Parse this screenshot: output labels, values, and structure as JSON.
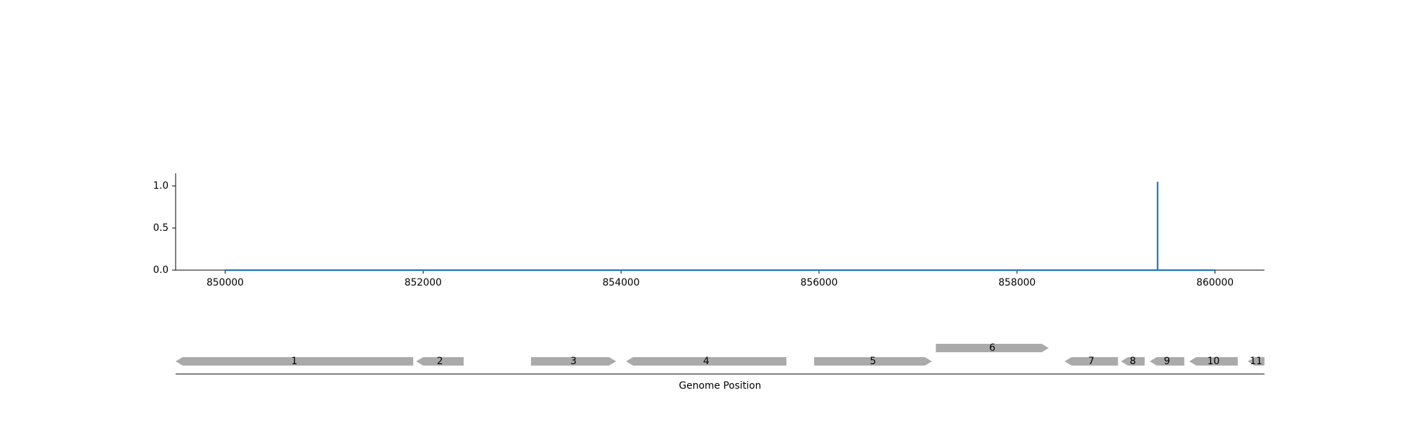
{
  "chart_data": [
    {
      "type": "line",
      "title": "",
      "xlabel": "",
      "ylabel": "",
      "xlim": [
        849500,
        860500
      ],
      "ylim": [
        0,
        1.15
      ],
      "x_ticks": [
        850000,
        852000,
        854000,
        856000,
        858000,
        860000
      ],
      "x_tick_labels": [
        "850000",
        "852000",
        "854000",
        "856000",
        "858000",
        "860000"
      ],
      "y_ticks": [
        0.0,
        0.5,
        1.0
      ],
      "y_tick_labels": [
        "0.0",
        "0.5",
        "1.0"
      ],
      "grid": false,
      "series": [
        {
          "color": "#1f77b4",
          "x": [
            850000,
            859420,
            859420,
            859420,
            859420,
            860000
          ],
          "y": [
            0,
            0,
            0,
            1.05,
            0,
            0
          ]
        }
      ]
    },
    {
      "type": "gene-map",
      "xlabel": "Genome Position",
      "xlim": [
        849500,
        860500
      ],
      "feature_color": "#aaaaaa",
      "features": [
        {
          "label": "1",
          "start": 849500,
          "end": 851900,
          "strand": -1,
          "level": 0
        },
        {
          "label": "2",
          "start": 851930,
          "end": 852410,
          "strand": -1,
          "level": 0
        },
        {
          "label": "3",
          "start": 853090,
          "end": 853950,
          "strand": 1,
          "level": 0
        },
        {
          "label": "4",
          "start": 854050,
          "end": 855670,
          "strand": -1,
          "level": 0
        },
        {
          "label": "5",
          "start": 855950,
          "end": 857140,
          "strand": 1,
          "level": 0
        },
        {
          "label": "6",
          "start": 857180,
          "end": 858320,
          "strand": 1,
          "level": 1
        },
        {
          "label": "7",
          "start": 858480,
          "end": 859020,
          "strand": -1,
          "level": 0
        },
        {
          "label": "8",
          "start": 859050,
          "end": 859290,
          "strand": -1,
          "level": 0
        },
        {
          "label": "9",
          "start": 859340,
          "end": 859690,
          "strand": -1,
          "level": 0
        },
        {
          "label": "10",
          "start": 859740,
          "end": 860230,
          "strand": -1,
          "level": 0
        },
        {
          "label": "11",
          "start": 860330,
          "end": 860500,
          "strand": -1,
          "level": 0
        }
      ]
    }
  ]
}
